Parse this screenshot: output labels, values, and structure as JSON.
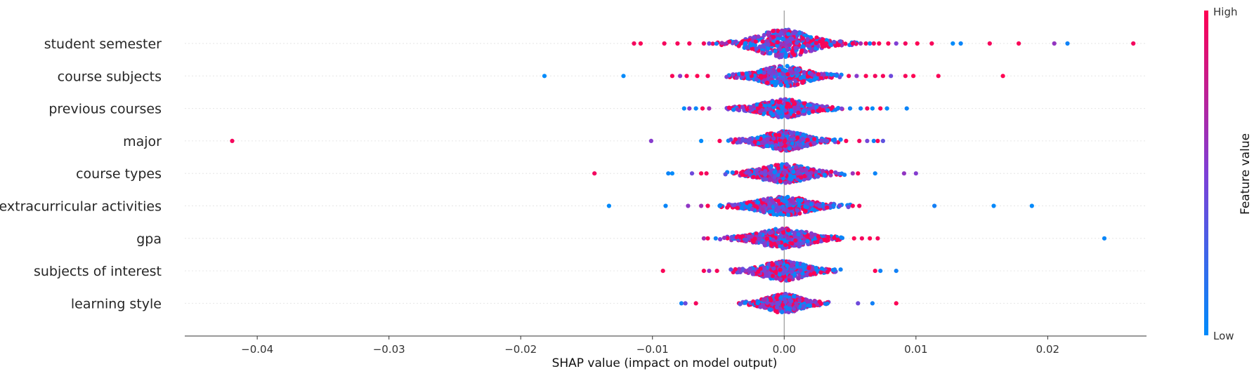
{
  "chart_data": {
    "type": "scatter",
    "title": "",
    "xlabel": "SHAP value (impact on model output)",
    "xlim": [
      -0.0455,
      0.0275
    ],
    "xticks": [
      -0.04,
      -0.03,
      -0.02,
      -0.01,
      0.0,
      0.01,
      0.02
    ],
    "xtick_labels": [
      "−0.04",
      "−0.03",
      "−0.02",
      "−0.01",
      "0.00",
      "0.01",
      "0.02"
    ],
    "grid": false,
    "colorbar": {
      "label": "Feature value",
      "high_label": "High",
      "low_label": "Low",
      "low_color": "#008bfb",
      "high_color": "#ff0052"
    },
    "features": [
      {
        "name": "student semester",
        "core": 0.0055,
        "density_width": 0.62,
        "tails": [
          [
            -0.0114,
            "high"
          ],
          [
            -0.0109,
            "high"
          ],
          [
            -0.0091,
            "high"
          ],
          [
            -0.0081,
            "high"
          ],
          [
            -0.0072,
            "high"
          ],
          [
            -0.0061,
            "high"
          ],
          [
            -0.0057,
            "mid"
          ],
          [
            0.0052,
            "high"
          ],
          [
            0.0058,
            "mid"
          ],
          [
            0.0062,
            "high"
          ],
          [
            0.0065,
            "low"
          ],
          [
            0.0068,
            "high"
          ],
          [
            0.0072,
            "high"
          ],
          [
            0.0079,
            "high"
          ],
          [
            0.0085,
            "mid"
          ],
          [
            0.0092,
            "high"
          ],
          [
            0.0101,
            "high"
          ],
          [
            0.0112,
            "high"
          ],
          [
            0.0128,
            "low"
          ],
          [
            0.0134,
            "low"
          ],
          [
            0.0156,
            "high"
          ],
          [
            0.0178,
            "high"
          ],
          [
            0.0205,
            "mid"
          ],
          [
            0.0215,
            "low"
          ],
          [
            0.0265,
            "high"
          ]
        ]
      },
      {
        "name": "course subjects",
        "core": 0.0045,
        "density_width": 0.45,
        "tails": [
          [
            -0.0182,
            "low"
          ],
          [
            -0.0122,
            "low"
          ],
          [
            -0.0085,
            "high"
          ],
          [
            -0.0079,
            "mid"
          ],
          [
            -0.0074,
            "high"
          ],
          [
            -0.0066,
            "high"
          ],
          [
            -0.0058,
            "high"
          ],
          [
            0.0049,
            "high"
          ],
          [
            0.0055,
            "mid"
          ],
          [
            0.0062,
            "high"
          ],
          [
            0.0069,
            "high"
          ],
          [
            0.0075,
            "high"
          ],
          [
            0.0081,
            "mid"
          ],
          [
            0.0092,
            "high"
          ],
          [
            0.0098,
            "high"
          ],
          [
            0.0117,
            "high"
          ],
          [
            0.0166,
            "high"
          ]
        ]
      },
      {
        "name": "previous courses",
        "core": 0.0046,
        "density_width": 0.38,
        "tails": [
          [
            -0.0076,
            "low"
          ],
          [
            -0.0072,
            "mid"
          ],
          [
            -0.0067,
            "low"
          ],
          [
            -0.0062,
            "high"
          ],
          [
            -0.0057,
            "mid"
          ],
          [
            0.005,
            "low"
          ],
          [
            0.0058,
            "low"
          ],
          [
            0.0063,
            "high"
          ],
          [
            0.0067,
            "low"
          ],
          [
            0.0073,
            "high"
          ],
          [
            0.0078,
            "low"
          ],
          [
            0.0093,
            "low"
          ]
        ]
      },
      {
        "name": "major",
        "core": 0.0043,
        "density_width": 0.42,
        "tails": [
          [
            -0.0419,
            "high"
          ],
          [
            -0.0101,
            "mid"
          ],
          [
            -0.0063,
            "low"
          ],
          [
            -0.0049,
            "high"
          ],
          [
            0.0047,
            "high"
          ],
          [
            0.0057,
            "high"
          ],
          [
            0.0063,
            "mid"
          ],
          [
            0.0068,
            "low"
          ],
          [
            0.0071,
            "high"
          ],
          [
            0.0075,
            "mid"
          ]
        ]
      },
      {
        "name": "course types",
        "core": 0.0048,
        "density_width": 0.4,
        "tails": [
          [
            -0.0144,
            "high"
          ],
          [
            -0.0088,
            "low"
          ],
          [
            -0.0085,
            "low"
          ],
          [
            -0.007,
            "mid"
          ],
          [
            -0.0063,
            "high"
          ],
          [
            -0.0059,
            "high"
          ],
          [
            0.0052,
            "mid"
          ],
          [
            0.0056,
            "high"
          ],
          [
            0.0069,
            "low"
          ],
          [
            0.0091,
            "mid"
          ],
          [
            0.01,
            "mid"
          ]
        ]
      },
      {
        "name": "extracurricular activities",
        "core": 0.0052,
        "density_width": 0.4,
        "tails": [
          [
            -0.0133,
            "low"
          ],
          [
            -0.009,
            "low"
          ],
          [
            -0.0073,
            "mid"
          ],
          [
            -0.0063,
            "mid"
          ],
          [
            -0.0058,
            "high"
          ],
          [
            -0.0049,
            "low"
          ],
          [
            0.0052,
            "high"
          ],
          [
            0.0057,
            "high"
          ],
          [
            0.0114,
            "low"
          ],
          [
            0.0159,
            "low"
          ],
          [
            0.0188,
            "low"
          ]
        ]
      },
      {
        "name": "gpa",
        "core": 0.005,
        "density_width": 0.42,
        "tails": [
          [
            -0.0061,
            "mid"
          ],
          [
            -0.0058,
            "high"
          ],
          [
            -0.0052,
            "low"
          ],
          [
            0.0053,
            "high"
          ],
          [
            0.0059,
            "high"
          ],
          [
            0.0065,
            "high"
          ],
          [
            0.0071,
            "high"
          ],
          [
            0.0243,
            "low"
          ]
        ]
      },
      {
        "name": "subjects of interest",
        "core": 0.0043,
        "density_width": 0.42,
        "tails": [
          [
            -0.0092,
            "high"
          ],
          [
            -0.0061,
            "high"
          ],
          [
            -0.0057,
            "mid"
          ],
          [
            -0.0051,
            "high"
          ],
          [
            0.0069,
            "high"
          ],
          [
            0.0073,
            "low"
          ],
          [
            0.0085,
            "low"
          ]
        ]
      },
      {
        "name": "learning style",
        "core": 0.0036,
        "density_width": 0.4,
        "tails": [
          [
            -0.0078,
            "low"
          ],
          [
            -0.0075,
            "mid"
          ],
          [
            -0.0067,
            "high"
          ],
          [
            0.0056,
            "mid"
          ],
          [
            0.0067,
            "low"
          ],
          [
            0.0085,
            "high"
          ]
        ]
      }
    ]
  }
}
